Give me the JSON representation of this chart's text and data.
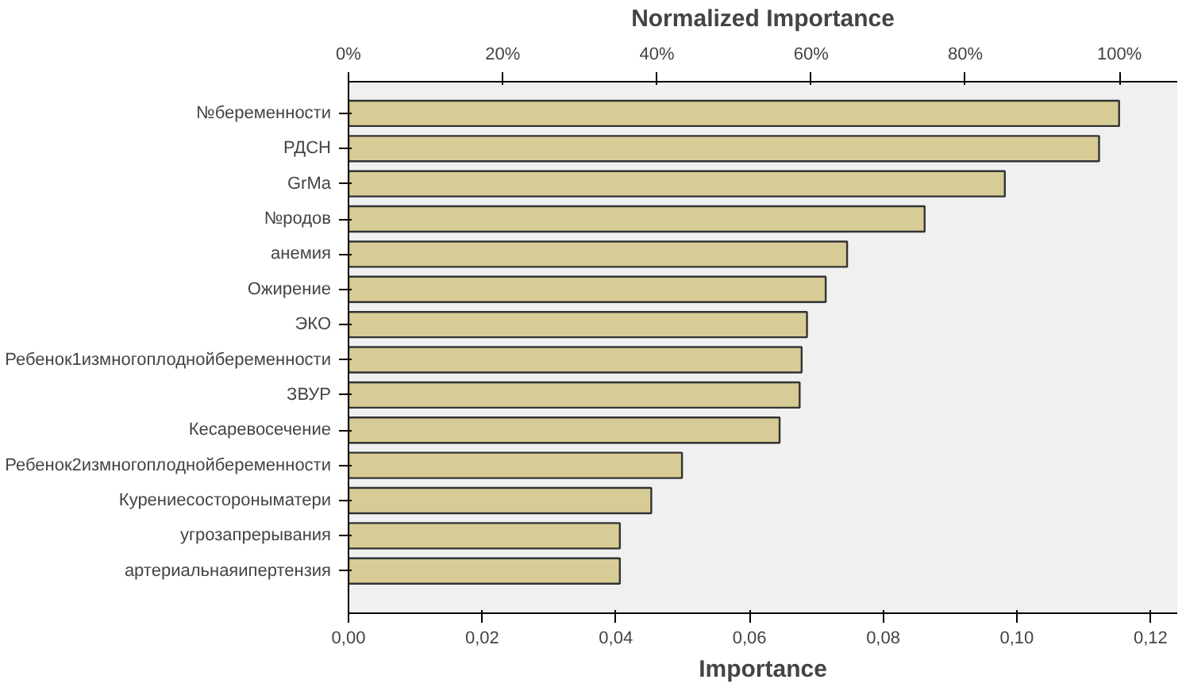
{
  "chart_data": {
    "type": "bar",
    "orientation": "horizontal",
    "xlabel": "Importance",
    "x2label": "Normalized Importance",
    "categories": [
      "№беременности",
      "РДСН",
      "GrMa",
      "№родов",
      "анемия",
      "Ожирение",
      "ЭКО",
      "Ребенок1измногоплоднойбеременности",
      "ЗВУР",
      "Кесаревосечение",
      "Ребенок2измногоплоднойбеременности",
      "Курениесостороныматери",
      "угрозапрерывания",
      "артериальнаяипертензия"
    ],
    "values": [
      0.1153,
      0.1123,
      0.0982,
      0.0862,
      0.0746,
      0.0714,
      0.0686,
      0.0678,
      0.0675,
      0.0645,
      0.0499,
      0.0453,
      0.0406,
      0.0406
    ],
    "color": "#d8cc96",
    "xlim": [
      0,
      0.124
    ],
    "xticks": [
      {
        "value": 0,
        "label": "0,00"
      },
      {
        "value": 0.02,
        "label": "0,02"
      },
      {
        "value": 0.04,
        "label": "0,04"
      },
      {
        "value": 0.06,
        "label": "0,06"
      },
      {
        "value": 0.08,
        "label": "0,08"
      },
      {
        "value": 0.1,
        "label": "0,10"
      },
      {
        "value": 0.12,
        "label": "0,12"
      }
    ],
    "x2lim": [
      0,
      107.5
    ],
    "x2ticks": [
      {
        "value": 0,
        "label": "0%"
      },
      {
        "value": 20,
        "label": "20%"
      },
      {
        "value": 40,
        "label": "40%"
      },
      {
        "value": 60,
        "label": "60%"
      },
      {
        "value": 80,
        "label": "80%"
      },
      {
        "value": 100,
        "label": "100%"
      }
    ],
    "grid": false
  }
}
